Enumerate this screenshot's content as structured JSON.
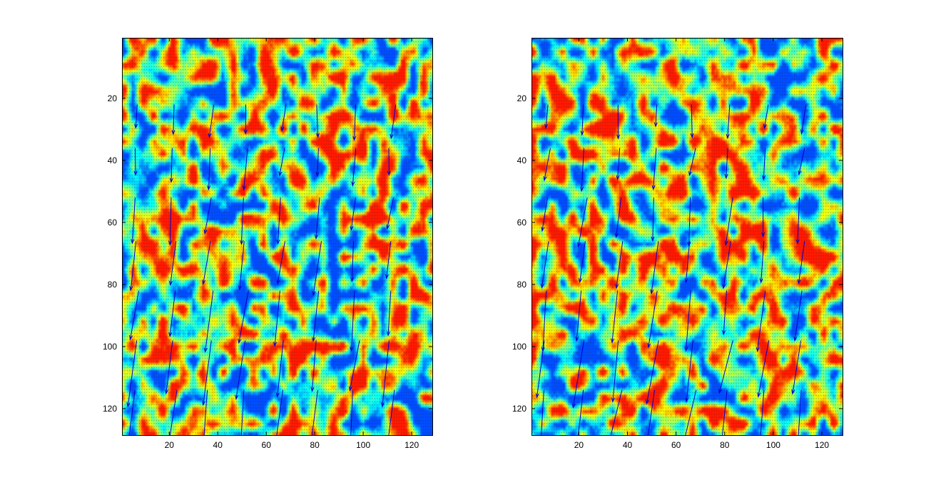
{
  "chart_data": [
    {
      "type": "heatmap",
      "title": "",
      "xlabel": "",
      "ylabel": "",
      "grid_size": [
        128,
        128
      ],
      "xlim": [
        1,
        128
      ],
      "ylim": [
        1,
        128
      ],
      "y_direction": "reversed",
      "xticks": [
        20,
        40,
        60,
        80,
        100,
        120
      ],
      "yticks": [
        20,
        40,
        60,
        80,
        100,
        120
      ],
      "colormap": "jet",
      "colorbar": false,
      "grid": false,
      "overlays": [
        "dense dot grid",
        "quiver arrows (vector field)"
      ],
      "seed": 7,
      "vector_field": {
        "columns": [
          7,
          22,
          37,
          52,
          67,
          82,
          97,
          112
        ],
        "rows": [
          22,
          36,
          52,
          66,
          82,
          98,
          114
        ],
        "dominant_direction": "down and slightly left",
        "length_trend": "increases toward the bottom"
      }
    },
    {
      "type": "heatmap",
      "title": "",
      "xlabel": "",
      "ylabel": "",
      "grid_size": [
        128,
        128
      ],
      "xlim": [
        1,
        128
      ],
      "ylim": [
        1,
        128
      ],
      "y_direction": "reversed",
      "xticks": [
        20,
        40,
        60,
        80,
        100,
        120
      ],
      "yticks": [
        20,
        40,
        60,
        80,
        100,
        120
      ],
      "colormap": "jet",
      "colorbar": false,
      "grid": false,
      "overlays": [
        "dense dot grid",
        "quiver arrows (vector field)"
      ],
      "seed": 11,
      "vector_field": {
        "columns": [
          7,
          22,
          37,
          52,
          67,
          82,
          97,
          112
        ],
        "rows": [
          22,
          36,
          52,
          66,
          82,
          98,
          114
        ],
        "dominant_direction": "down and slightly left",
        "length_trend": "increases toward the bottom"
      }
    }
  ],
  "colors": {
    "arrow": "#0000cc",
    "dot": "#222222",
    "axes": "#000000",
    "background": "#ffffff"
  }
}
